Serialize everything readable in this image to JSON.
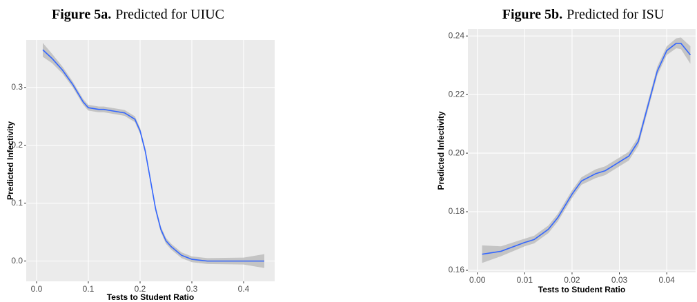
{
  "chart_data": [
    {
      "type": "line",
      "figure_label": "Figure 5a.",
      "title": "Predicted for UIUC",
      "xlabel": "Tests to Student Ratio",
      "ylabel": "Predicted Infectivity",
      "xlim": [
        -0.02,
        0.46
      ],
      "ylim": [
        -0.035,
        0.382
      ],
      "xticks": [
        {
          "value": 0,
          "label": "0.0"
        },
        0.1,
        0.2,
        0.3,
        0.4
      ],
      "yticks": [
        {
          "value": 0,
          "label": "0.0"
        },
        0.1,
        0.2,
        0.3
      ],
      "grid": true,
      "color": "#3366ff",
      "band_color": "#bdbdbd",
      "x": [
        0.012,
        0.03,
        0.05,
        0.07,
        0.09,
        0.1,
        0.12,
        0.13,
        0.15,
        0.17,
        0.19,
        0.2,
        0.21,
        0.22,
        0.23,
        0.24,
        0.25,
        0.26,
        0.28,
        0.3,
        0.33,
        0.4,
        0.44
      ],
      "values": [
        0.365,
        0.35,
        0.33,
        0.305,
        0.275,
        0.265,
        0.262,
        0.262,
        0.259,
        0.256,
        0.245,
        0.225,
        0.19,
        0.14,
        0.09,
        0.055,
        0.035,
        0.025,
        0.01,
        0.003,
        0,
        0,
        0
      ],
      "lower": [
        0.353,
        0.342,
        0.324,
        0.3,
        0.27,
        0.26,
        0.257,
        0.257,
        0.254,
        0.251,
        0.24,
        0.22,
        0.185,
        0.135,
        0.085,
        0.05,
        0.03,
        0.02,
        0.005,
        -0.002,
        -0.005,
        -0.006,
        -0.012
      ],
      "upper": [
        0.377,
        0.358,
        0.336,
        0.31,
        0.28,
        0.27,
        0.267,
        0.267,
        0.264,
        0.261,
        0.25,
        0.23,
        0.195,
        0.145,
        0.095,
        0.06,
        0.04,
        0.03,
        0.015,
        0.008,
        0.005,
        0.006,
        0.012
      ]
    },
    {
      "type": "line",
      "figure_label": "Figure 5b.",
      "title": "Predicted for ISU",
      "xlabel": "Tests to Student Ratio",
      "ylabel": "Predicted Infectivity",
      "xlim": [
        -0.002,
        0.0461
      ],
      "ylim": [
        0.1593,
        0.2424
      ],
      "xticks": [
        {
          "value": 0,
          "label": "0.00"
        },
        0.01,
        0.02,
        0.03,
        0.04
      ],
      "yticks": [
        0.16,
        0.18,
        {
          "value": 0.2,
          "label": "0.20"
        },
        0.22,
        0.24
      ],
      "grid": true,
      "color": "#3366ff",
      "band_color": "#bdbdbd",
      "x": [
        0.001,
        0.005,
        0.01,
        0.012,
        0.015,
        0.017,
        0.02,
        0.022,
        0.025,
        0.027,
        0.03,
        0.032,
        0.034,
        0.036,
        0.038,
        0.04,
        0.042,
        0.043,
        0.045
      ],
      "values": [
        0.1655,
        0.1665,
        0.1695,
        0.1705,
        0.174,
        0.178,
        0.186,
        0.1905,
        0.193,
        0.194,
        0.197,
        0.199,
        0.204,
        0.216,
        0.228,
        0.235,
        0.2375,
        0.2375,
        0.2335
      ],
      "lower": [
        0.1625,
        0.1648,
        0.1682,
        0.1692,
        0.1727,
        0.1767,
        0.1847,
        0.1892,
        0.1915,
        0.1925,
        0.1955,
        0.1975,
        0.2025,
        0.2145,
        0.2265,
        0.2335,
        0.2358,
        0.2355,
        0.2305
      ],
      "upper": [
        0.1685,
        0.1682,
        0.1708,
        0.1718,
        0.1753,
        0.1793,
        0.1873,
        0.1918,
        0.1945,
        0.1955,
        0.1985,
        0.2005,
        0.2055,
        0.2175,
        0.2295,
        0.2365,
        0.2392,
        0.2395,
        0.2365
      ]
    }
  ]
}
